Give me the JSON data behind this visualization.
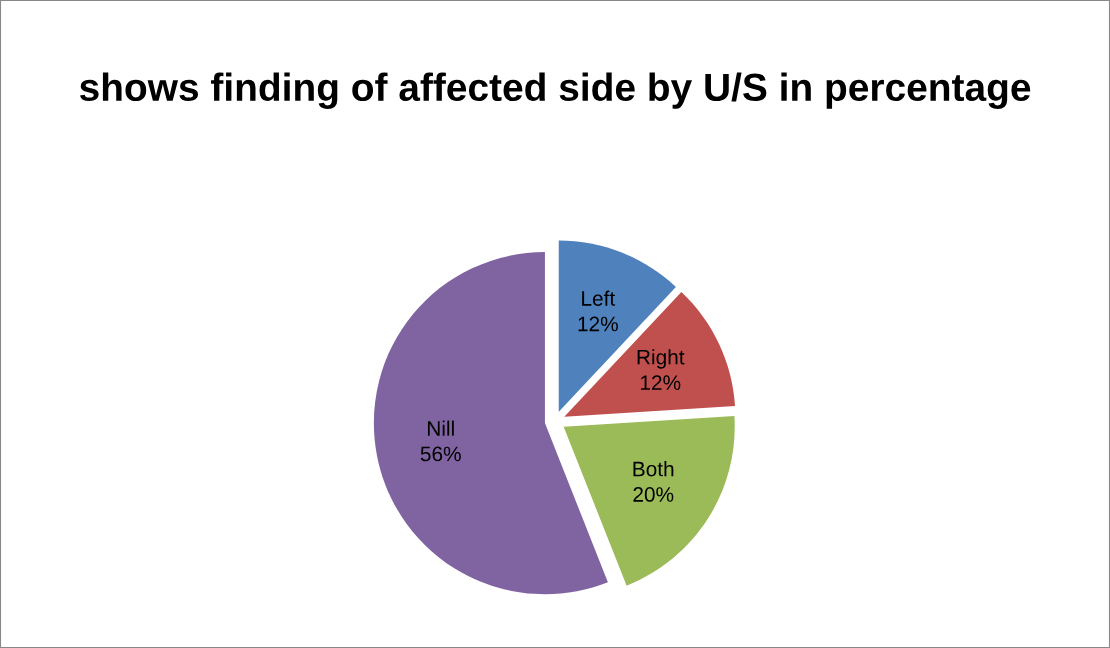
{
  "chart_data": {
    "type": "pie",
    "title": "shows finding of affected side by U/S in percentage",
    "categories": [
      "Left",
      "Right",
      "Both",
      "Nill"
    ],
    "values": [
      12,
      12,
      20,
      56
    ],
    "colors": [
      "#4f81bd",
      "#c0504d",
      "#9bbb59",
      "#8064a2"
    ],
    "value_labels": [
      "12%",
      "12%",
      "20%",
      "56%"
    ],
    "legend": false
  }
}
